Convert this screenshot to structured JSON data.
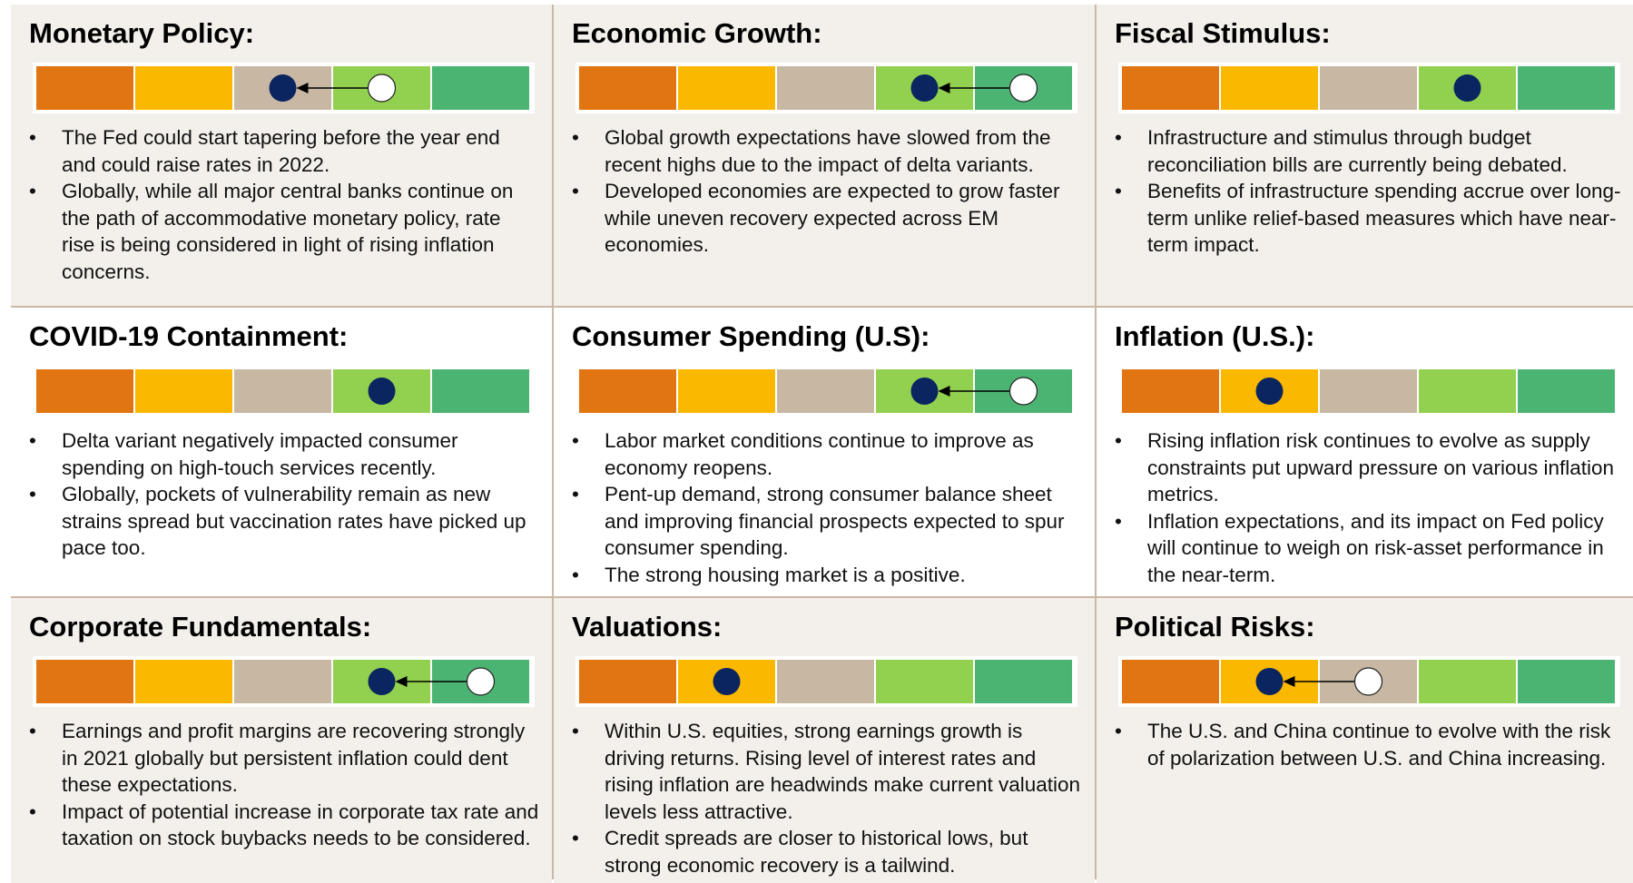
{
  "panels": [
    {
      "title": "Monetary Policy:",
      "rating": 3,
      "prior": 4,
      "bullets": [
        "The Fed could start tapering before the year end and could raise rates in 2022.",
        "Globally, while all major central banks continue on the path of accommodative monetary policy, rate rise is being considered in light of rising inflation concerns."
      ]
    },
    {
      "title": "Economic Growth:",
      "rating": 4,
      "prior": 5,
      "bullets": [
        "Global growth expectations have slowed from the recent highs due to the impact of delta variants.",
        "Developed economies are expected to grow faster while uneven recovery expected across EM economies."
      ]
    },
    {
      "title": "Fiscal Stimulus:",
      "rating": 4,
      "bullets": [
        "Infrastructure and stimulus through budget reconciliation bills are currently being debated.",
        "Benefits of infrastructure spending accrue over long-term unlike relief-based measures which have near-term impact."
      ]
    },
    {
      "title": "COVID-19 Containment:",
      "rating": 4,
      "bullets": [
        "Delta variant negatively impacted consumer spending on high-touch services recently.",
        "Globally, pockets of vulnerability remain as new strains spread but vaccination rates have picked up pace too."
      ]
    },
    {
      "title": "Consumer Spending (U.S):",
      "rating": 4,
      "prior": 5,
      "bullets": [
        "Labor market conditions continue to improve as economy reopens.",
        "Pent-up demand, strong consumer balance sheet and improving financial prospects expected to spur consumer spending.",
        "The strong housing market is a positive."
      ]
    },
    {
      "title": "Inflation (U.S.):",
      "rating": 2,
      "bullets": [
        "Rising inflation risk continues to evolve as supply constraints put upward pressure on various inflation metrics.",
        "Inflation expectations, and its impact on Fed policy will continue to weigh on risk-asset performance in the near-term."
      ]
    },
    {
      "title": "Corporate Fundamentals:",
      "rating": 4,
      "prior": 5,
      "bullets": [
        "Earnings and profit margins are recovering strongly in 2021 globally but persistent inflation could dent these expectations.",
        "Impact of potential increase in corporate tax rate and taxation on stock buybacks needs to be considered."
      ]
    },
    {
      "title": "Valuations:",
      "rating": 2,
      "bullets": [
        "Within U.S. equities, strong earnings growth is driving returns. Rising level of interest rates and rising inflation are headwinds make current valuation levels less attractive.",
        "Credit spreads are closer to historical lows, but strong economic recovery is a tailwind."
      ]
    },
    {
      "title": "Political Risks:",
      "rating": 2,
      "prior": 3,
      "bullets": [
        "The U.S. and China continue to evolve with the risk of polarization between U.S. and China increasing."
      ]
    }
  ]
}
